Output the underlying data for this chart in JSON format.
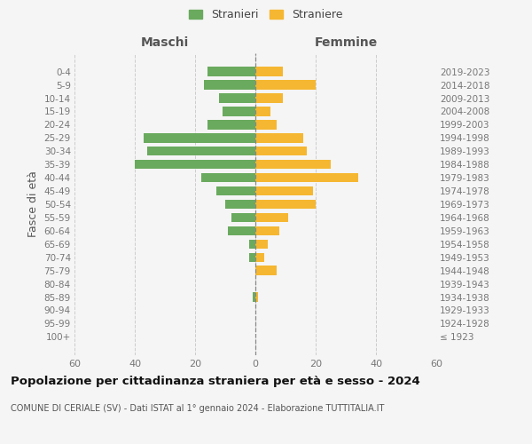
{
  "age_groups": [
    "100+",
    "95-99",
    "90-94",
    "85-89",
    "80-84",
    "75-79",
    "70-74",
    "65-69",
    "60-64",
    "55-59",
    "50-54",
    "45-49",
    "40-44",
    "35-39",
    "30-34",
    "25-29",
    "20-24",
    "15-19",
    "10-14",
    "5-9",
    "0-4"
  ],
  "birth_years": [
    "≤ 1923",
    "1924-1928",
    "1929-1933",
    "1934-1938",
    "1939-1943",
    "1944-1948",
    "1949-1953",
    "1954-1958",
    "1959-1963",
    "1964-1968",
    "1969-1973",
    "1974-1978",
    "1979-1983",
    "1984-1988",
    "1989-1993",
    "1994-1998",
    "1999-2003",
    "2004-2008",
    "2009-2013",
    "2014-2018",
    "2019-2023"
  ],
  "males": [
    0,
    0,
    0,
    1,
    0,
    0,
    2,
    2,
    9,
    8,
    10,
    13,
    18,
    40,
    36,
    37,
    16,
    11,
    12,
    17,
    16
  ],
  "females": [
    0,
    0,
    0,
    1,
    0,
    7,
    3,
    4,
    8,
    11,
    20,
    19,
    34,
    25,
    17,
    16,
    7,
    5,
    9,
    20,
    9
  ],
  "male_color": "#6aaa5e",
  "female_color": "#f5b731",
  "background_color": "#f5f5f5",
  "grid_color": "#cccccc",
  "title": "Popolazione per cittadinanza straniera per età e sesso - 2024",
  "subtitle": "COMUNE DI CERIALE (SV) - Dati ISTAT al 1° gennaio 2024 - Elaborazione TUTTITALIA.IT",
  "xlabel_left": "Maschi",
  "xlabel_right": "Femmine",
  "ylabel_left": "Fasce di età",
  "legend_male": "Stranieri",
  "legend_female": "Straniere",
  "xlim": 60
}
